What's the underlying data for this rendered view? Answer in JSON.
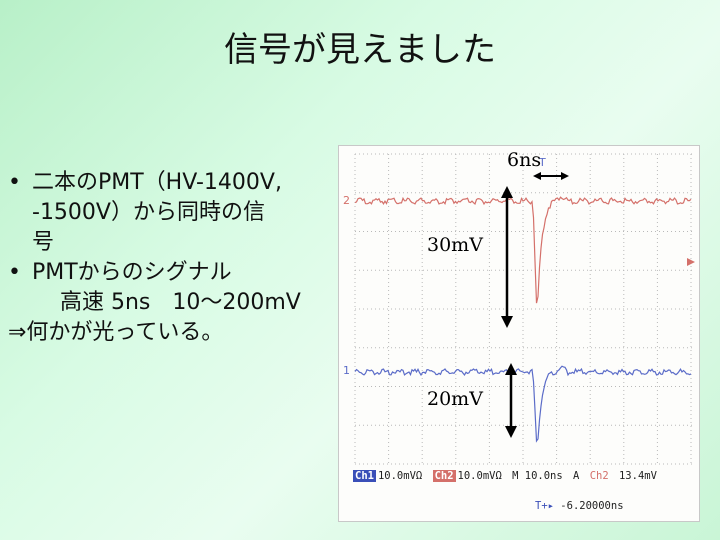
{
  "slide": {
    "title": "信号が見えました"
  },
  "bullets": {
    "item1_line1": "二本のPMT（HV-1400V,",
    "item1_line2": "-1500V）から同時の信",
    "item1_line3": "号",
    "item2_line1": "PMTからのシグナル",
    "item2_line2": "高速 5ns　10～200mV",
    "item2_line3": "⇒何かが光っている。",
    "bullet_char": "•"
  },
  "annotations": {
    "time_width": "6ns",
    "ch2_amplitude": "30mV",
    "ch1_amplitude": "20mV"
  },
  "oscilloscope": {
    "ch1_marker": "1",
    "ch2_marker": "2",
    "trigger_marker": "T",
    "ch1_label": "Ch1",
    "ch1_scale": "10.0mVΩ",
    "ch2_label": "Ch2",
    "ch2_scale": "10.0mVΩ",
    "timebase": "M 10.0ns",
    "trigger_symbol": "A",
    "trigger_channel": "Ch2",
    "trigger_level": "13.4mV",
    "trigger_position_label": "T+▸",
    "trigger_position": "-6.20000ns",
    "colors": {
      "ch1": "#5b6cc8",
      "ch2": "#d4706a",
      "grid": "#b9b9b9"
    }
  }
}
